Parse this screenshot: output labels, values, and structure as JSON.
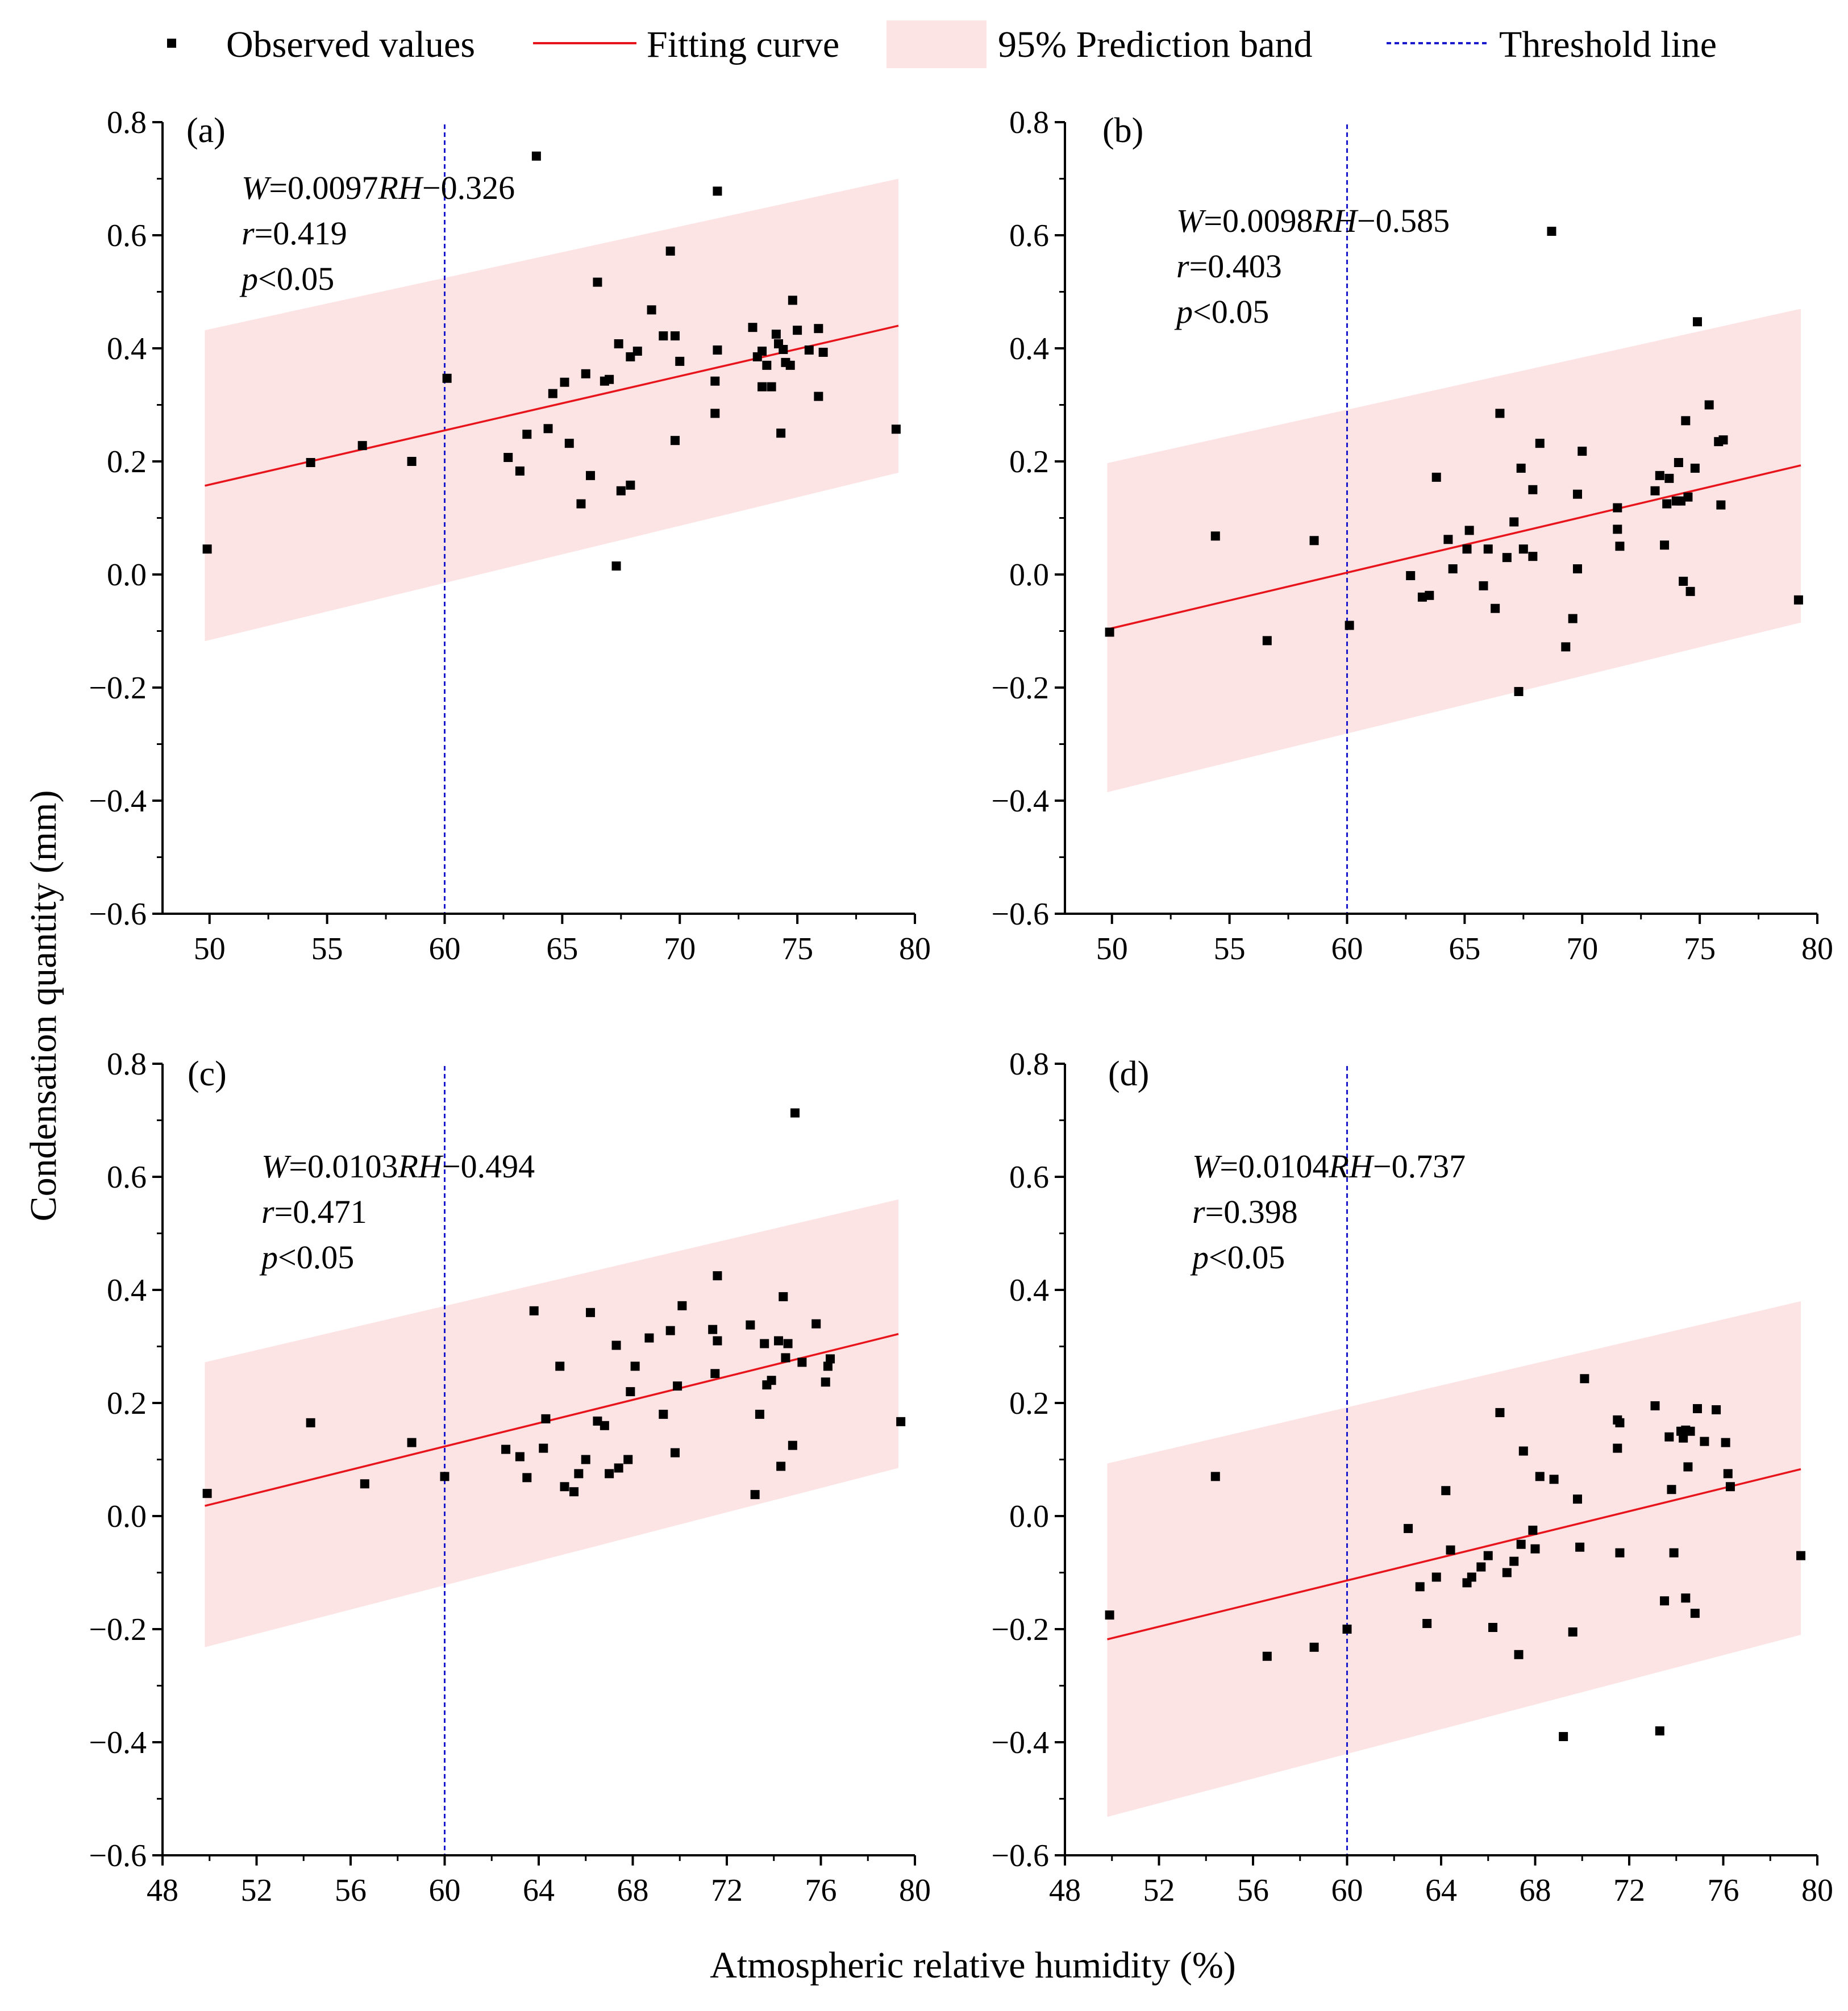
{
  "legend": {
    "observed": "Observed values",
    "fit": "Fitting curve",
    "band": "95% Prediction band",
    "threshold": "Threshold line"
  },
  "xlabel": "Atmospheric relative humidity (%)",
  "ylabel": "Condensation quantity (mm)",
  "colors": {
    "points": "#000000",
    "fit": "#e8141b",
    "band": "#fde4e4",
    "threshold": "#1a1acc"
  },
  "chart_data": [
    {
      "type": "scatter",
      "label": "(a)",
      "equation": {
        "prefix": "W",
        "text": "=0.0097",
        "var": "RH",
        "rest": "−0.326"
      },
      "r": "=0.419",
      "p": "<0.05",
      "xlim": [
        48,
        80
      ],
      "ylim": [
        -0.6,
        0.8
      ],
      "xticks": [
        50,
        55,
        60,
        65,
        70,
        75,
        80
      ],
      "xtick_labels": [
        "50",
        "55",
        "60",
        "65",
        "70",
        "75",
        "80"
      ],
      "yticks": [
        -0.6,
        -0.4,
        -0.2,
        0.0,
        0.2,
        0.4,
        0.6,
        0.8
      ],
      "ytick_labels": [
        "−0.6",
        "−0.4",
        "−0.2",
        "0.0",
        "0.2",
        "0.4",
        "0.6",
        "0.8"
      ],
      "threshold_x": 60,
      "fit": {
        "x": [
          49.8,
          79.3
        ],
        "y": [
          0.157,
          0.44
        ]
      },
      "band": {
        "x": [
          49.8,
          79.3
        ],
        "upper": [
          0.432,
          0.7
        ],
        "lower": [
          -0.118,
          0.18
        ]
      },
      "points": [
        [
          49.9,
          0.045
        ],
        [
          54.3,
          0.198
        ],
        [
          56.5,
          0.228
        ],
        [
          58.6,
          0.2
        ],
        [
          60.1,
          0.347
        ],
        [
          62.7,
          0.207
        ],
        [
          63.2,
          0.183
        ],
        [
          63.5,
          0.248
        ],
        [
          63.9,
          0.74
        ],
        [
          64.4,
          0.258
        ],
        [
          64.6,
          0.32
        ],
        [
          65.1,
          0.34
        ],
        [
          65.3,
          0.232
        ],
        [
          65.8,
          0.125
        ],
        [
          66.0,
          0.355
        ],
        [
          66.2,
          0.175
        ],
        [
          66.5,
          0.517
        ],
        [
          66.8,
          0.342
        ],
        [
          67.0,
          0.345
        ],
        [
          67.3,
          0.015
        ],
        [
          67.4,
          0.408
        ],
        [
          67.5,
          0.148
        ],
        [
          67.9,
          0.158
        ],
        [
          67.9,
          0.385
        ],
        [
          68.2,
          0.395
        ],
        [
          68.8,
          0.468
        ],
        [
          69.3,
          0.422
        ],
        [
          69.6,
          0.572
        ],
        [
          69.8,
          0.237
        ],
        [
          69.8,
          0.422
        ],
        [
          70.0,
          0.377
        ],
        [
          71.5,
          0.285
        ],
        [
          71.5,
          0.342
        ],
        [
          71.6,
          0.397
        ],
        [
          71.6,
          0.678
        ],
        [
          73.1,
          0.437
        ],
        [
          73.3,
          0.385
        ],
        [
          73.5,
          0.332
        ],
        [
          73.5,
          0.395
        ],
        [
          73.7,
          0.37
        ],
        [
          73.9,
          0.332
        ],
        [
          74.1,
          0.425
        ],
        [
          74.2,
          0.408
        ],
        [
          74.3,
          0.25
        ],
        [
          74.4,
          0.398
        ],
        [
          74.5,
          0.375
        ],
        [
          74.7,
          0.37
        ],
        [
          74.8,
          0.485
        ],
        [
          75.0,
          0.432
        ],
        [
          75.5,
          0.397
        ],
        [
          75.9,
          0.435
        ],
        [
          75.9,
          0.315
        ],
        [
          76.1,
          0.393
        ],
        [
          79.2,
          0.257
        ]
      ]
    },
    {
      "type": "scatter",
      "label": "(b)",
      "equation": {
        "prefix": "W",
        "text": "=0.0098",
        "var": "RH",
        "rest": "−0.585"
      },
      "r": "=0.403",
      "p": "<0.05",
      "xlim": [
        48,
        80
      ],
      "ylim": [
        -0.6,
        0.8
      ],
      "xticks": [
        50,
        55,
        60,
        65,
        70,
        75,
        80
      ],
      "xtick_labels": [
        "50",
        "55",
        "60",
        "65",
        "70",
        "75",
        "80"
      ],
      "yticks": [
        -0.6,
        -0.4,
        -0.2,
        0.0,
        0.2,
        0.4,
        0.6,
        0.8
      ],
      "ytick_labels": [
        "−0.6",
        "−0.4",
        "−0.2",
        "0.0",
        "0.2",
        "0.4",
        "0.6",
        "0.8"
      ],
      "threshold_x": 60,
      "fit": {
        "x": [
          49.8,
          79.3
        ],
        "y": [
          -0.097,
          0.193
        ]
      },
      "band": {
        "x": [
          49.8,
          79.3
        ],
        "upper": [
          0.197,
          0.47
        ],
        "lower": [
          -0.385,
          -0.085
        ]
      },
      "points": [
        [
          49.9,
          -0.102
        ],
        [
          54.4,
          0.068
        ],
        [
          56.6,
          -0.117
        ],
        [
          58.6,
          0.06
        ],
        [
          60.1,
          -0.09
        ],
        [
          62.7,
          -0.002
        ],
        [
          63.2,
          -0.04
        ],
        [
          63.5,
          -0.037
        ],
        [
          63.8,
          0.172
        ],
        [
          64.3,
          0.062
        ],
        [
          64.5,
          0.01
        ],
        [
          65.1,
          0.045
        ],
        [
          65.2,
          0.078
        ],
        [
          65.8,
          -0.02
        ],
        [
          66.0,
          0.045
        ],
        [
          66.3,
          -0.06
        ],
        [
          66.5,
          0.285
        ],
        [
          66.8,
          0.03
        ],
        [
          67.1,
          0.093
        ],
        [
          67.3,
          -0.207
        ],
        [
          67.4,
          0.188
        ],
        [
          67.5,
          0.045
        ],
        [
          67.9,
          0.15
        ],
        [
          67.9,
          0.032
        ],
        [
          68.2,
          0.232
        ],
        [
          68.7,
          0.607
        ],
        [
          69.3,
          -0.128
        ],
        [
          69.6,
          -0.078
        ],
        [
          69.8,
          0.142
        ],
        [
          69.8,
          0.01
        ],
        [
          70.0,
          0.218
        ],
        [
          71.5,
          0.08
        ],
        [
          71.5,
          0.118
        ],
        [
          71.6,
          0.05
        ],
        [
          73.1,
          0.148
        ],
        [
          73.3,
          0.175
        ],
        [
          73.5,
          0.052
        ],
        [
          73.6,
          0.125
        ],
        [
          73.7,
          0.17
        ],
        [
          74.0,
          0.13
        ],
        [
          74.1,
          0.198
        ],
        [
          74.2,
          0.13
        ],
        [
          74.3,
          -0.012
        ],
        [
          74.4,
          0.272
        ],
        [
          74.5,
          0.137
        ],
        [
          74.6,
          -0.03
        ],
        [
          74.8,
          0.188
        ],
        [
          74.9,
          0.447
        ],
        [
          75.4,
          0.3
        ],
        [
          75.8,
          0.235
        ],
        [
          75.9,
          0.123
        ],
        [
          76.0,
          0.238
        ],
        [
          79.2,
          -0.045
        ]
      ]
    },
    {
      "type": "scatter",
      "label": "(c)",
      "equation": {
        "prefix": "W",
        "text": "=0.0103",
        "var": "RH",
        "rest": "−0.494"
      },
      "r": "=0.471",
      "p": "<0.05",
      "xlim": [
        48,
        80
      ],
      "ylim": [
        -0.6,
        0.8
      ],
      "xticks": [
        48,
        52,
        56,
        60,
        64,
        68,
        72,
        76,
        80
      ],
      "xtick_labels": [
        "48",
        "52",
        "56",
        "60",
        "64",
        "68",
        "72",
        "76",
        "80"
      ],
      "yticks": [
        -0.6,
        -0.4,
        -0.2,
        0.0,
        0.2,
        0.4,
        0.6,
        0.8
      ],
      "ytick_labels": [
        "−0.6",
        "−0.4",
        "−0.2",
        "0.0",
        "0.2",
        "0.4",
        "0.6",
        "0.8"
      ],
      "threshold_x": 60,
      "fit": {
        "x": [
          49.8,
          79.3
        ],
        "y": [
          0.018,
          0.322
        ]
      },
      "band": {
        "x": [
          49.8,
          79.3
        ],
        "upper": [
          0.272,
          0.56
        ],
        "lower": [
          -0.232,
          0.085
        ]
      },
      "points": [
        [
          49.9,
          0.04
        ],
        [
          54.3,
          0.165
        ],
        [
          56.6,
          0.057
        ],
        [
          58.6,
          0.13
        ],
        [
          60.0,
          0.07
        ],
        [
          62.6,
          0.118
        ],
        [
          63.2,
          0.105
        ],
        [
          63.5,
          0.068
        ],
        [
          63.8,
          0.363
        ],
        [
          64.2,
          0.12
        ],
        [
          64.3,
          0.172
        ],
        [
          64.9,
          0.265
        ],
        [
          65.1,
          0.052
        ],
        [
          65.5,
          0.043
        ],
        [
          65.7,
          0.075
        ],
        [
          66.0,
          0.1
        ],
        [
          66.2,
          0.36
        ],
        [
          66.5,
          0.168
        ],
        [
          66.8,
          0.16
        ],
        [
          67.0,
          0.075
        ],
        [
          67.3,
          0.302
        ],
        [
          67.4,
          0.085
        ],
        [
          67.8,
          0.1
        ],
        [
          67.9,
          0.22
        ],
        [
          68.1,
          0.265
        ],
        [
          68.7,
          0.315
        ],
        [
          69.3,
          0.18
        ],
        [
          69.6,
          0.328
        ],
        [
          69.8,
          0.112
        ],
        [
          69.9,
          0.23
        ],
        [
          70.1,
          0.372
        ],
        [
          71.4,
          0.33
        ],
        [
          71.5,
          0.252
        ],
        [
          71.6,
          0.425
        ],
        [
          71.6,
          0.31
        ],
        [
          73.0,
          0.338
        ],
        [
          73.2,
          0.038
        ],
        [
          73.4,
          0.18
        ],
        [
          73.6,
          0.305
        ],
        [
          73.7,
          0.232
        ],
        [
          73.9,
          0.24
        ],
        [
          74.2,
          0.31
        ],
        [
          74.3,
          0.088
        ],
        [
          74.4,
          0.388
        ],
        [
          74.5,
          0.28
        ],
        [
          74.6,
          0.305
        ],
        [
          74.8,
          0.125
        ],
        [
          74.9,
          0.713
        ],
        [
          75.2,
          0.272
        ],
        [
          75.8,
          0.34
        ],
        [
          76.2,
          0.237
        ],
        [
          76.3,
          0.265
        ],
        [
          76.4,
          0.278
        ],
        [
          79.4,
          0.167
        ]
      ]
    },
    {
      "type": "scatter",
      "label": "(d)",
      "equation": {
        "prefix": "W",
        "text": "=0.0104",
        "var": "RH",
        "rest": "−0.737"
      },
      "r": "=0.398",
      "p": "<0.05",
      "xlim": [
        48,
        80
      ],
      "ylim": [
        -0.6,
        0.8
      ],
      "xticks": [
        48,
        52,
        56,
        60,
        64,
        68,
        72,
        76,
        80
      ],
      "xtick_labels": [
        "48",
        "52",
        "56",
        "60",
        "64",
        "68",
        "72",
        "76",
        "80"
      ],
      "yticks": [
        -0.6,
        -0.4,
        -0.2,
        0.0,
        0.2,
        0.4,
        0.6,
        0.8
      ],
      "ytick_labels": [
        "−0.6",
        "−0.4",
        "−0.2",
        "0.0",
        "0.2",
        "0.4",
        "0.6",
        "0.8"
      ],
      "threshold_x": 60,
      "fit": {
        "x": [
          49.8,
          79.3
        ],
        "y": [
          -0.218,
          0.083
        ]
      },
      "band": {
        "x": [
          49.8,
          79.3
        ],
        "upper": [
          0.093,
          0.38
        ],
        "lower": [
          -0.532,
          -0.21
        ]
      },
      "points": [
        [
          49.9,
          -0.175
        ],
        [
          54.4,
          0.07
        ],
        [
          56.6,
          -0.248
        ],
        [
          58.6,
          -0.232
        ],
        [
          60.0,
          -0.2
        ],
        [
          62.6,
          -0.022
        ],
        [
          63.1,
          -0.125
        ],
        [
          63.4,
          -0.19
        ],
        [
          63.8,
          -0.108
        ],
        [
          64.2,
          0.045
        ],
        [
          64.4,
          -0.06
        ],
        [
          65.1,
          -0.118
        ],
        [
          65.3,
          -0.108
        ],
        [
          65.7,
          -0.09
        ],
        [
          66.0,
          -0.07
        ],
        [
          66.2,
          -0.197
        ],
        [
          66.5,
          0.183
        ],
        [
          66.8,
          -0.1
        ],
        [
          67.1,
          -0.08
        ],
        [
          67.3,
          -0.245
        ],
        [
          67.4,
          -0.05
        ],
        [
          67.5,
          0.115
        ],
        [
          67.9,
          -0.025
        ],
        [
          68.0,
          -0.058
        ],
        [
          68.2,
          0.07
        ],
        [
          68.8,
          0.065
        ],
        [
          69.2,
          -0.39
        ],
        [
          69.6,
          -0.205
        ],
        [
          69.8,
          0.03
        ],
        [
          69.9,
          -0.055
        ],
        [
          70.1,
          0.243
        ],
        [
          71.5,
          0.12
        ],
        [
          71.5,
          0.17
        ],
        [
          71.6,
          0.165
        ],
        [
          71.6,
          -0.065
        ],
        [
          73.1,
          0.195
        ],
        [
          73.3,
          -0.38
        ],
        [
          73.5,
          -0.15
        ],
        [
          73.7,
          0.14
        ],
        [
          73.8,
          0.047
        ],
        [
          73.9,
          -0.065
        ],
        [
          74.2,
          0.15
        ],
        [
          74.3,
          0.138
        ],
        [
          74.4,
          0.152
        ],
        [
          74.4,
          -0.145
        ],
        [
          74.5,
          0.087
        ],
        [
          74.6,
          0.15
        ],
        [
          74.8,
          -0.172
        ],
        [
          74.9,
          0.19
        ],
        [
          75.2,
          0.132
        ],
        [
          75.7,
          0.188
        ],
        [
          76.1,
          0.13
        ],
        [
          76.2,
          0.075
        ],
        [
          76.3,
          0.052
        ],
        [
          79.3,
          -0.07
        ]
      ]
    }
  ]
}
